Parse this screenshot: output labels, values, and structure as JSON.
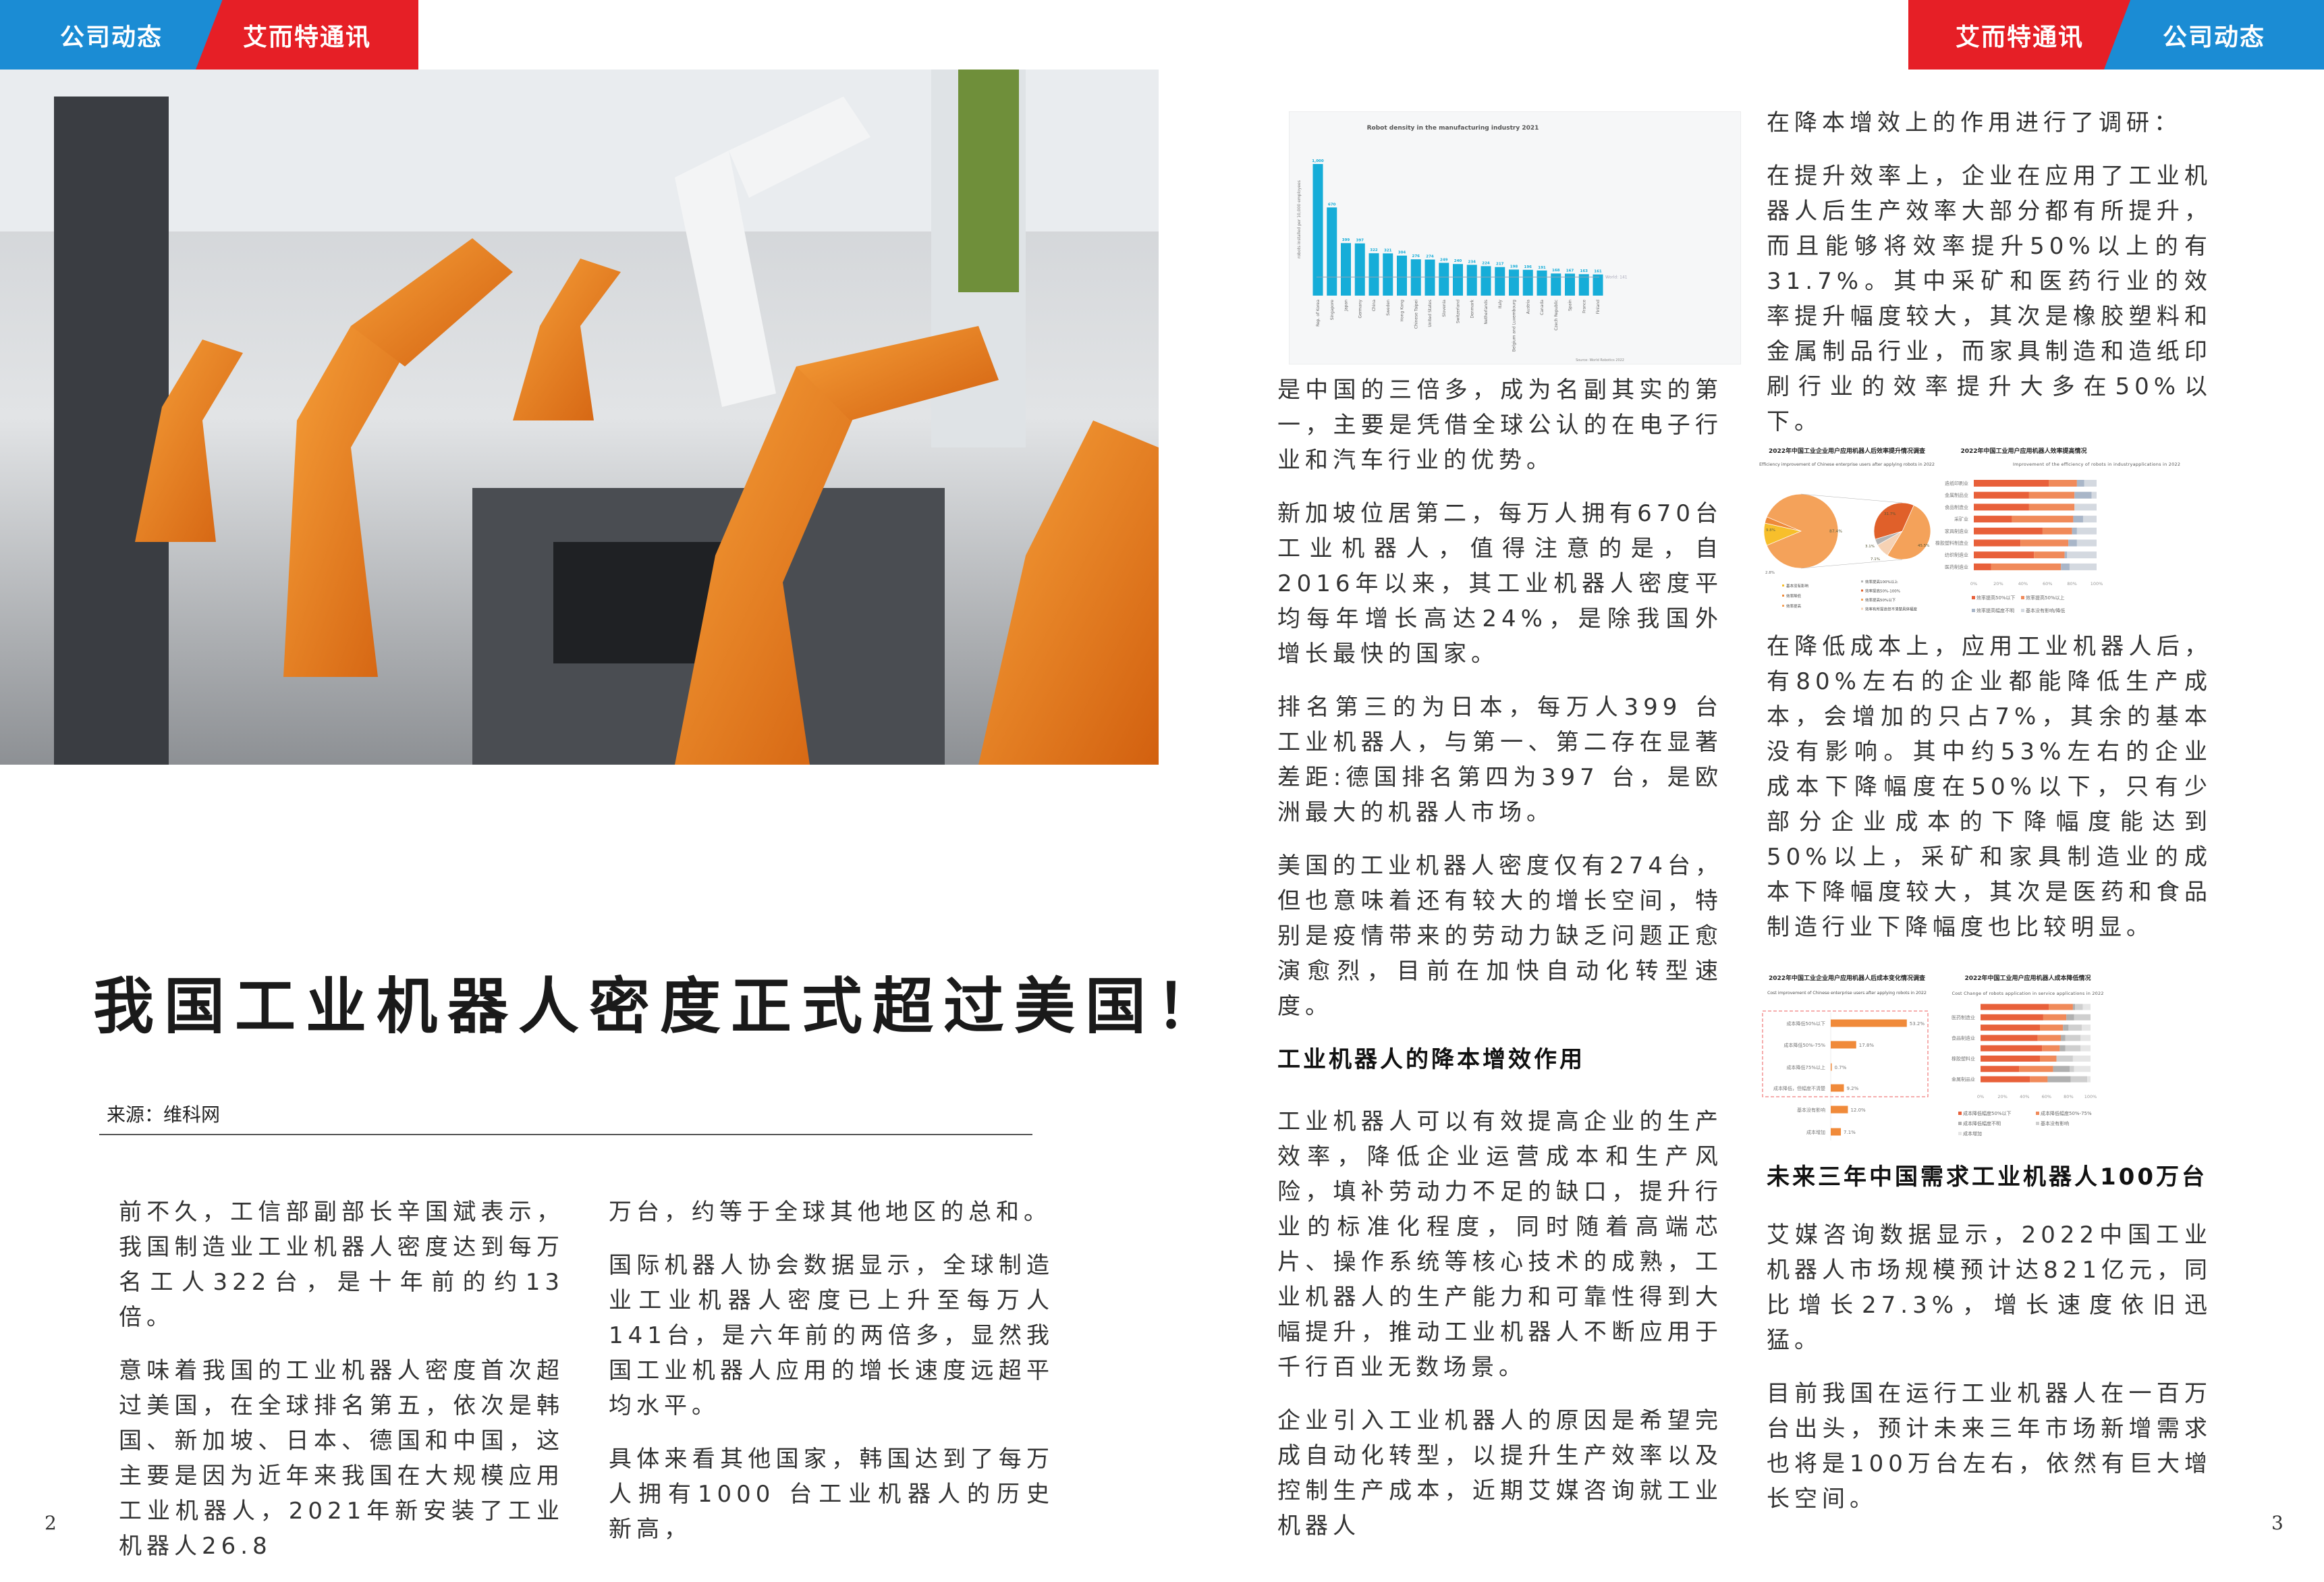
{
  "header_left": {
    "tab1": "公司动态",
    "tab2": "艾而特通讯"
  },
  "header_right": {
    "tab1": "艾而特通讯",
    "tab2": "公司动态"
  },
  "colors": {
    "blue": "#1b8cd4",
    "red": "#e61f26",
    "bar_blue": "#16add8",
    "orange": "#f08a3a",
    "dark_orange": "#e8603a"
  },
  "article": {
    "title": "我国工业机器人密度正式超过美国！",
    "source": "来源：维科网",
    "col1": [
      "前不久，工信部副部长辛国斌表示，我国制造业工业机器人密度达到每万名工人322台，是十年前的约13倍。",
      "意味着我国的工业机器人密度首次超过美国，在全球排名第五，依次是韩国、新加坡、日本、德国和中国，这主要是因为近年来我国在大规模应用工业机器人，2021年新安装了工业机器人26.8"
    ],
    "col2": [
      "万台，约等于全球其他地区的总和。",
      "国际机器人协会数据显示，全球制造业工业机器人密度已上升至每万人141台，是六年前的两倍多，显然我国工业机器人应用的增长速度远超平均水平。",
      "具体来看其他国家，韩国达到了每万人拥有1000 台工业机器人的历史新高，"
    ],
    "col3": [
      "是中国的三倍多，成为名副其实的第一，主要是凭借全球公认的在电子行业和汽车行业的优势。",
      "新加坡位居第二，每万人拥有670台工业机器人，值得注意的是，自2016年以来，其工业机器人密度平均每年增长高达24%，是除我国外增长最快的国家。",
      "排名第三的为日本，每万人399 台工业机器人，与第一、第二存在显著差距:德国排名第四为397 台，是欧洲最大的机器人市场。",
      "美国的工业机器人密度仅有274台，但也意味着还有较大的增长空间，特别是疫情带来的劳动力缺乏问题正愈演愈烈，目前在加快自动化转型速度。"
    ],
    "heading1": "工业机器人的降本增效作用",
    "col3b": [
      "工业机器人可以有效提高企业的生产效率，降低企业运营成本和生产风险，填补劳动力不足的缺口，提升行业的标准化程度，同时随着高端芯片、操作系统等核心技术的成熟，工业机器人的生产能力和可靠性得到大幅提升，推动工业机器人不断应用于千行百业无数场景。",
      "企业引入工业机器人的原因是希望完成自动化转型，以提升生产效率以及控制生产成本，近期艾媒咨询就工业机器人"
    ],
    "col4a": [
      "在降本增效上的作用进行了调研：",
      "在提升效率上，企业在应用了工业机器人后生产效率大部分都有所提升，而且能够将效率提升50%以上的有31.7%。其中采矿和医药行业的效率提升幅度较大，其次是橡胶塑料和金属制品行业，而家具制造和造纸印刷行业的效率提升大多在50%以下。"
    ],
    "col4b": [
      "在降低成本上，应用工业机器人后，有80%左右的企业都能降低生产成本，会增加的只占7%，其余的基本没有影响。其中约53%左右的企业成本下降幅度在50%以下，只有少部分企业成本的下降幅度能达到50%以上，采矿和家具制造业的成本下降幅度较大，其次是医药和食品制造行业下降幅度也比较明显。"
    ],
    "heading2": "未来三年中国需求工业机器人100万台",
    "col4c": [
      "艾媒咨询数据显示，2022中国工业机器人市场规模预计达821亿元，同比增长27.3%，增长速度依旧迅猛。",
      "目前我国在运行工业机器人在一百万台出头，预计未来三年市场新增需求也将是100万台左右，依然有巨大增长空间。"
    ]
  },
  "page_numbers": {
    "left": "2",
    "right": "3"
  },
  "chart_data": [
    {
      "type": "bar",
      "title": "Robot density in the manufacturing industry 2021",
      "ylabel": "robots installed per 10,000 employees",
      "categories": [
        "Rep. of Korea",
        "Singapore",
        "Japan",
        "Germany",
        "China",
        "Sweden",
        "Hong Kong",
        "Chinese Taipei",
        "United States",
        "Slovenia",
        "Switzerland",
        "Denmark",
        "Netherlands",
        "Italy",
        "Belgium and Luxembourg",
        "Austria",
        "Canada",
        "Czech Republic",
        "Spain",
        "France",
        "Finland"
      ],
      "values": [
        1000,
        670,
        399,
        397,
        322,
        321,
        304,
        276,
        274,
        249,
        240,
        234,
        224,
        217,
        198,
        196,
        191,
        168,
        167,
        163,
        161
      ],
      "value_labels": [
        "1,000",
        "670",
        "399",
        "397",
        "322",
        "321",
        "304",
        "276",
        "274",
        "249",
        "240",
        "234",
        "224",
        "217",
        "198",
        "196",
        "191",
        "168",
        "167",
        "163",
        "161"
      ],
      "reference_line": {
        "label": "World: 141",
        "value": 141
      },
      "source": "Source: World Robotics 2022",
      "ylim": [
        0,
        1000
      ]
    },
    {
      "type": "pie",
      "title": "2022年中国工业企业用户应用机器人后效率提升情况调查",
      "subtitle": "Efficiency improvement of Chinese enterprise users after applying robots in 2022",
      "slices": [
        {
          "label": "效率提高",
          "value": 87.4,
          "value_label": "87.4%",
          "color": "#f4a25a"
        },
        {
          "label": "基本没有影响",
          "value": 9.8,
          "value_label": "9.8%",
          "color": "#f7bf2b"
        },
        {
          "label": "效率降低",
          "value": 2.8,
          "value_label": "2.8%",
          "color": "#ee8a3a"
        }
      ],
      "breakdown_of": "效率提高",
      "breakdown": [
        {
          "label": "效率提高50%以下",
          "value": 45.5,
          "value_label": "45.5%",
          "color": "#f4a25a"
        },
        {
          "label": "效率有所提高但不清楚具体幅度",
          "value": 7.1,
          "value_label": "7.1%",
          "color": "#f6d2b4"
        },
        {
          "label": "效率提高100%以上",
          "value": 3.1,
          "value_label": "3.1%",
          "color": "#b3b3b3"
        },
        {
          "label": "效率提高50%-100%",
          "value": 31.7,
          "value_label": "31.7%",
          "color": "#e0602a"
        }
      ]
    },
    {
      "type": "bar",
      "orientation": "horizontal-stacked",
      "title": "2022年中国工业用户应用机器人效率提高情况",
      "subtitle": "Improvement of the efficiency of robots in industryapplications in 2022",
      "categories": [
        "造纸印刷业",
        "金属制品业",
        "食品制造业",
        "采矿业",
        "家具制造业",
        "橡胶塑料制造业",
        "纺织制造业",
        "医药制造业"
      ],
      "series": [
        {
          "name": "效率提高50%以下",
          "color": "#e8603a",
          "values": [
            61,
            45,
            45,
            31,
            56,
            38,
            49,
            14
          ]
        },
        {
          "name": "效率提高50%以上",
          "color": "#f08a5a",
          "values": [
            23,
            37,
            37,
            50,
            24,
            39,
            25,
            57
          ]
        },
        {
          "name": "效率提高幅度不明",
          "color": "#a9b6c8",
          "values": [
            6,
            14,
            0,
            8,
            4,
            7,
            2,
            7
          ]
        },
        {
          "name": "基本没有影响/降低",
          "color": "#d4d9e0",
          "values": [
            10,
            4,
            18,
            11,
            16,
            16,
            24,
            22
          ]
        }
      ],
      "xticks": [
        "0%",
        "20%",
        "40%",
        "60%",
        "80%",
        "100%"
      ],
      "xlim": [
        0,
        100
      ]
    },
    {
      "type": "bar",
      "orientation": "horizontal",
      "title": "2022年中国工业企业用户应用机器人后成本变化情况调查",
      "subtitle": "Cost improvement of Chinese enterprise users after applying robots in 2022",
      "categories": [
        "成本降低50%以下",
        "成本降低50%-75%",
        "成本降低75%以上",
        "成本降低，但幅度不清楚",
        "基本没有影响",
        "成本增加"
      ],
      "values": [
        53.2,
        17.8,
        0.7,
        9.2,
        12.0,
        7.1
      ],
      "value_labels": [
        "53.2%",
        "17.8%",
        "0.7%",
        "9.2%",
        "12.0%",
        "7.1%"
      ],
      "color": "#f08a3a"
    },
    {
      "type": "bar",
      "orientation": "horizontal-stacked",
      "title": "2022年中国工业用户应用机器人成本降低情况",
      "subtitle": "Cost Change of robots application in service applications in 2022",
      "categories": [
        "",
        "医药制造业",
        "",
        "食品制造业",
        "",
        "橡胶塑料业",
        "",
        "金属制品业"
      ],
      "series": [
        {
          "name": "成本降低幅度50%以下",
          "color": "#e8603a",
          "values": [
            62,
            57,
            54,
            52,
            56,
            54,
            35,
            45
          ]
        },
        {
          "name": "成本降低幅度50%-75%",
          "color": "#f08a5a",
          "values": [
            22,
            21,
            21,
            21,
            16,
            15,
            31,
            16
          ]
        },
        {
          "name": "成本降低幅度不明",
          "color": "#b0b0b0",
          "values": [
            2,
            7,
            5,
            4,
            5,
            0,
            15,
            21
          ]
        },
        {
          "name": "基本没有影响",
          "color": "#cfcfcf",
          "values": [
            7,
            15,
            12,
            14,
            14,
            15,
            4,
            15
          ]
        },
        {
          "name": "成本增加",
          "color": "#e6e6e6",
          "values": [
            7,
            0,
            8,
            9,
            9,
            16,
            15,
            3
          ]
        }
      ],
      "xticks": [
        "0%",
        "20%",
        "40%",
        "60%",
        "80%",
        "100%"
      ],
      "xlim": [
        0,
        100
      ]
    }
  ]
}
